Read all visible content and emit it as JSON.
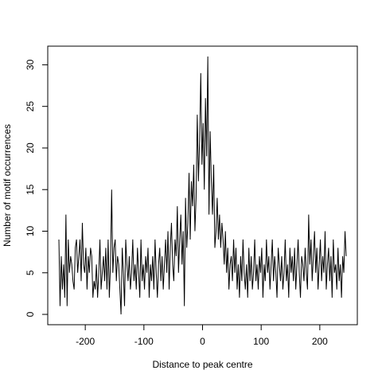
{
  "chart_data": {
    "type": "line",
    "xlabel": "Distance to peak centre",
    "ylabel": "Number of motif occurrences",
    "xlim": [
      -264,
      264
    ],
    "ylim": [
      -1.24,
      32.24
    ],
    "xticks": [
      -200,
      -100,
      0,
      100,
      200
    ],
    "yticks": [
      0,
      5,
      10,
      15,
      20,
      25,
      30
    ],
    "color": "#000000",
    "x": [
      -245,
      -243,
      -241,
      -239,
      -237,
      -235,
      -233,
      -231,
      -229,
      -227,
      -225,
      -223,
      -221,
      -219,
      -217,
      -215,
      -213,
      -211,
      -209,
      -207,
      -205,
      -203,
      -201,
      -199,
      -197,
      -195,
      -193,
      -191,
      -189,
      -187,
      -185,
      -183,
      -181,
      -179,
      -177,
      -175,
      -173,
      -171,
      -169,
      -167,
      -165,
      -163,
      -161,
      -159,
      -157,
      -155,
      -153,
      -151,
      -149,
      -147,
      -145,
      -143,
      -141,
      -139,
      -137,
      -135,
      -133,
      -131,
      -129,
      -127,
      -125,
      -123,
      -121,
      -119,
      -117,
      -115,
      -113,
      -111,
      -109,
      -107,
      -105,
      -103,
      -101,
      -99,
      -97,
      -95,
      -93,
      -91,
      -89,
      -87,
      -85,
      -83,
      -81,
      -79,
      -77,
      -75,
      -73,
      -71,
      -69,
      -67,
      -65,
      -63,
      -61,
      -59,
      -57,
      -55,
      -53,
      -51,
      -49,
      -47,
      -45,
      -43,
      -41,
      -39,
      -37,
      -35,
      -33,
      -31,
      -29,
      -27,
      -25,
      -23,
      -21,
      -19,
      -17,
      -15,
      -13,
      -11,
      -9,
      -7,
      -5,
      -3,
      -1,
      1,
      3,
      5,
      7,
      9,
      11,
      13,
      15,
      17,
      19,
      21,
      23,
      25,
      27,
      29,
      31,
      33,
      35,
      37,
      39,
      41,
      43,
      45,
      47,
      49,
      51,
      53,
      55,
      57,
      59,
      61,
      63,
      65,
      67,
      69,
      71,
      73,
      75,
      77,
      79,
      81,
      83,
      85,
      87,
      89,
      91,
      93,
      95,
      97,
      99,
      101,
      103,
      105,
      107,
      109,
      111,
      113,
      115,
      117,
      119,
      121,
      123,
      125,
      127,
      129,
      131,
      133,
      135,
      137,
      139,
      141,
      143,
      145,
      147,
      149,
      151,
      153,
      155,
      157,
      159,
      161,
      163,
      165,
      167,
      169,
      171,
      173,
      175,
      177,
      179,
      181,
      183,
      185,
      187,
      189,
      191,
      193,
      195,
      197,
      199,
      201,
      203,
      205,
      207,
      209,
      211,
      213,
      215,
      217,
      219,
      221,
      223,
      225,
      227,
      229,
      231,
      233,
      235,
      237,
      239,
      241,
      243,
      245
    ],
    "values": [
      9,
      1,
      7,
      3,
      6,
      2,
      12,
      1,
      9,
      5,
      7,
      6,
      4,
      3,
      8,
      9,
      5,
      7,
      9,
      4,
      11,
      6,
      5,
      8,
      3,
      7,
      5,
      8,
      7,
      2,
      4,
      3,
      6,
      2,
      5,
      9,
      3,
      5,
      7,
      4,
      8,
      3,
      9,
      2,
      6,
      15,
      5,
      8,
      9,
      4,
      7,
      6,
      3,
      0,
      8,
      5,
      1,
      9,
      6,
      4,
      7,
      3,
      5,
      9,
      4,
      6,
      3,
      8,
      5,
      2,
      9,
      4,
      6,
      3,
      7,
      5,
      8,
      2,
      6,
      4,
      7,
      3,
      9,
      5,
      2,
      6,
      8,
      4,
      7,
      3,
      6,
      9,
      5,
      10,
      3,
      8,
      11,
      6,
      4,
      9,
      7,
      13,
      5,
      9,
      12,
      6,
      10,
      1,
      14,
      8,
      11,
      17,
      9,
      16,
      13,
      18,
      10,
      14,
      24,
      16,
      21,
      29,
      18,
      23,
      15,
      26,
      19,
      31,
      12,
      22,
      16,
      12,
      18,
      8,
      10,
      14,
      9,
      12,
      8,
      11,
      9,
      6,
      10,
      5,
      8,
      3,
      6,
      7,
      4,
      9,
      5,
      8,
      3,
      6,
      2,
      7,
      4,
      9,
      5,
      3,
      6,
      2,
      8,
      4,
      7,
      3,
      5,
      9,
      4,
      6,
      3,
      7,
      5,
      8,
      2,
      6,
      4,
      9,
      5,
      7,
      3,
      6,
      9,
      4,
      7,
      5,
      2,
      8,
      6,
      4,
      7,
      3,
      5,
      9,
      4,
      6,
      2,
      8,
      5,
      7,
      4,
      8,
      3,
      6,
      9,
      5,
      2,
      7,
      6,
      4,
      8,
      5,
      3,
      12,
      6,
      9,
      4,
      7,
      10,
      5,
      8,
      3,
      6,
      9,
      4,
      7,
      5,
      10,
      3,
      6,
      8,
      4,
      7,
      2,
      9,
      5,
      6,
      3,
      8,
      4,
      6,
      2,
      7,
      5,
      10,
      7
    ]
  }
}
